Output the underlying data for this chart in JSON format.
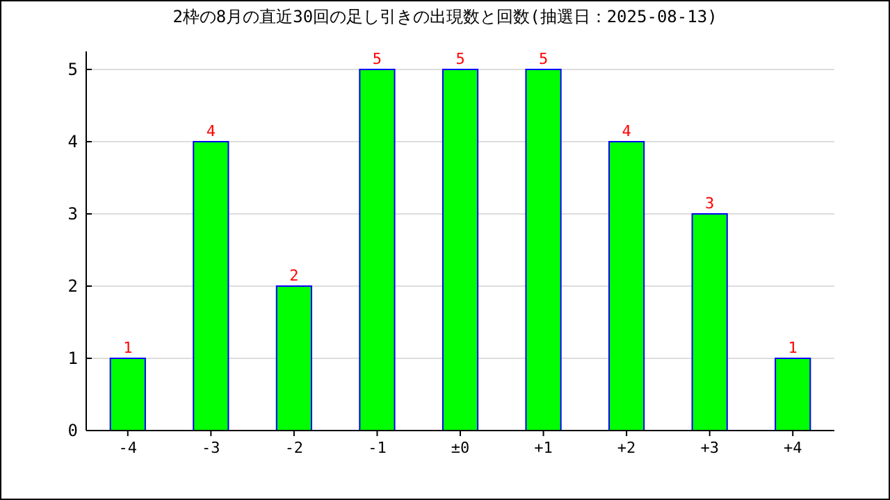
{
  "chart_data": {
    "type": "bar",
    "title": "2枠の8月の直近30回の足し引きの出現数と回数(抽選日：2025-08-13)",
    "categories": [
      "-4",
      "-3",
      "-2",
      "-1",
      "±0",
      "+1",
      "+2",
      "+3",
      "+4"
    ],
    "values": [
      1,
      4,
      2,
      5,
      5,
      5,
      4,
      3,
      1
    ],
    "color": "#00ff00",
    "ylim": [
      0,
      5.25
    ],
    "yticks": [
      0,
      1,
      2,
      3,
      4,
      5
    ],
    "grid": "y",
    "data_labels": true
  }
}
